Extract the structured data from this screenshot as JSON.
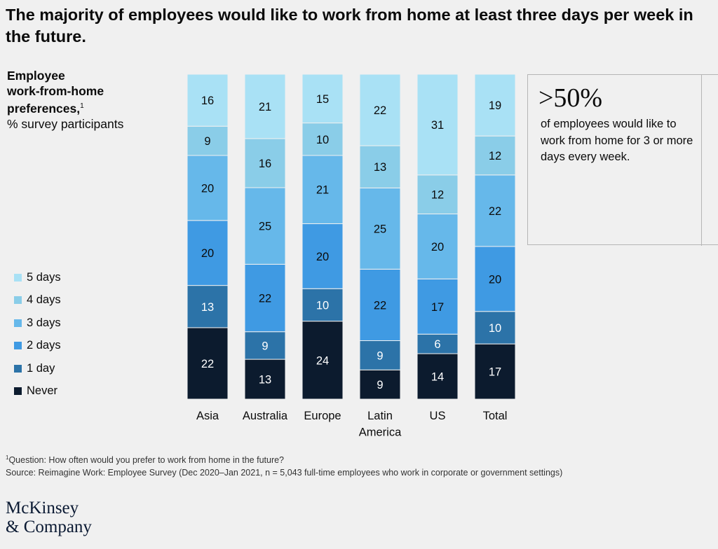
{
  "title": "The majority of employees would like to work from home at least three days per week in the future.",
  "panel": {
    "line1": "Employee",
    "line2": "work-from-home",
    "line3": "preferences,",
    "footnote_marker": "1",
    "subtitle": "% survey participants"
  },
  "legend": {
    "items": [
      {
        "label": "5 days",
        "color": "#a9e1f5"
      },
      {
        "label": "4 days",
        "color": "#8acde8"
      },
      {
        "label": "3 days",
        "color": "#66b8ea"
      },
      {
        "label": "2 days",
        "color": "#3f9ae3"
      },
      {
        "label": "1 day",
        "color": "#2c73a8"
      },
      {
        "label": "Never",
        "color": "#0c1b2e"
      }
    ]
  },
  "chart_data": {
    "type": "bar",
    "stacked": true,
    "categories": [
      [
        "Asia"
      ],
      [
        "Australia"
      ],
      [
        "Europe"
      ],
      [
        "Latin",
        "America"
      ],
      [
        "US"
      ],
      [
        "Total"
      ]
    ],
    "series": [
      {
        "name": "Never",
        "color": "#0c1b2e",
        "label_color": "#ffffff",
        "values": [
          22,
          13,
          24,
          9,
          14,
          17
        ]
      },
      {
        "name": "1 day",
        "color": "#2c73a8",
        "label_color": "#ffffff",
        "values": [
          13,
          9,
          10,
          9,
          6,
          10
        ]
      },
      {
        "name": "2 days",
        "color": "#3f9ae3",
        "label_color": "#0b0b0b",
        "values": [
          20,
          22,
          20,
          22,
          17,
          20
        ]
      },
      {
        "name": "3 days",
        "color": "#66b8ea",
        "label_color": "#0b0b0b",
        "values": [
          20,
          25,
          21,
          25,
          20,
          22
        ]
      },
      {
        "name": "4 days",
        "color": "#8acde8",
        "label_color": "#0b0b0b",
        "values": [
          9,
          16,
          10,
          13,
          12,
          12
        ]
      },
      {
        "name": "5 days",
        "color": "#a9e1f5",
        "label_color": "#0b0b0b",
        "values": [
          16,
          21,
          15,
          22,
          31,
          19
        ]
      }
    ]
  },
  "callout": {
    "stat": ">50%",
    "text": "of employees would like to work from home for 3 or more days every week."
  },
  "footnotes": {
    "marker": "1",
    "question": "Question: How often would you prefer to work from home in the future?",
    "source": "Source: Reimagine Work: Employee Survey (Dec 2020–Jan 2021, n = 5,043 full-time employees who work in corporate or government settings)"
  },
  "logo": {
    "line1": "McKinsey",
    "line2": "& Company"
  }
}
